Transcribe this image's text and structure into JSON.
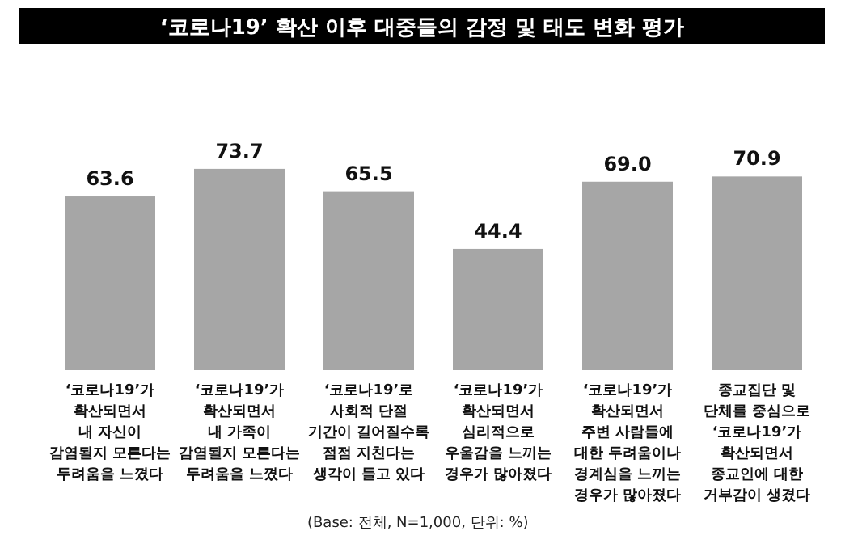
{
  "chart_data": {
    "type": "bar",
    "title": "‘코로나19’ 확산 이후 대중들의 감정 및 태도 변화 평가",
    "categories": [
      "‘코로나19’가\n확산되면서\n내 자신이\n감염될지 모른다는\n두려움을 느꼈다",
      "‘코로나19’가\n확산되면서\n내 가족이\n감염될지 모른다는\n두려움을 느꼈다",
      "‘코로나19’로\n사회적 단절\n기간이 길어질수록\n점점 지친다는\n생각이 들고 있다",
      "‘코로나19’가\n확산되면서\n심리적으로\n우울감을 느끼는\n경우가 많아졌다",
      "‘코로나19’가\n확산되면서\n주변 사람들에\n대한 두려움이나\n경계심을 느끼는\n경우가 많아졌다",
      "종교집단 및\n단체를 중심으로\n‘코로나19’가\n확산되면서\n종교인에 대한\n거부감이 생겼다"
    ],
    "values": [
      63.6,
      73.7,
      65.5,
      44.4,
      69.0,
      70.9
    ],
    "value_labels": [
      "63.6",
      "73.7",
      "65.5",
      "44.4",
      "69.0",
      "70.9"
    ],
    "color": "#a6a6a6",
    "annotations": [
      "(Base: 전체, N=1,000, 단위: %)"
    ]
  }
}
